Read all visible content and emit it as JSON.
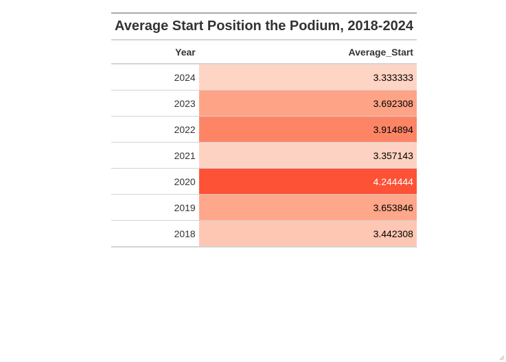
{
  "table": {
    "title": "Average Start Position the Podium, 2018-2024",
    "columns": [
      "Year",
      "Average_Start"
    ]
  },
  "chart_data": {
    "type": "table",
    "title": "Average Start Position the Podium, 2018-2024",
    "columns": [
      "Year",
      "Average_Start"
    ],
    "rows": [
      {
        "year": "2024",
        "value": "3.333333",
        "fill": "#fed4c4",
        "text_color": "#000000"
      },
      {
        "year": "2023",
        "value": "3.692308",
        "fill": "#fea386",
        "text_color": "#000000"
      },
      {
        "year": "2022",
        "value": "3.914894",
        "fill": "#fd8566",
        "text_color": "#000000"
      },
      {
        "year": "2021",
        "value": "3.357143",
        "fill": "#fed2c2",
        "text_color": "#000000"
      },
      {
        "year": "2020",
        "value": "4.244444",
        "fill": "#fe5237",
        "text_color": "#ffffff"
      },
      {
        "year": "2019",
        "value": "3.653846",
        "fill": "#fea78a",
        "text_color": "#000000"
      },
      {
        "year": "2018",
        "value": "3.442308",
        "fill": "#fec7b3",
        "text_color": "#000000"
      }
    ]
  }
}
